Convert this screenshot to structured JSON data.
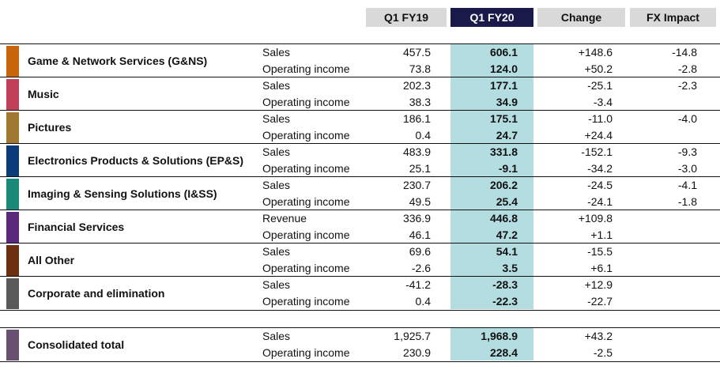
{
  "headers": {
    "q1fy19": "Q1 FY19",
    "q1fy20": "Q1 FY20",
    "change": "Change",
    "fx": "FX Impact"
  },
  "segments": [
    {
      "name": "Game & Network Services (G&NS)",
      "color": "#c8640a",
      "rows": [
        {
          "label": "Sales",
          "q1fy19": "457.5",
          "q1fy20": "606.1",
          "change": "+148.6",
          "fx": "-14.8"
        },
        {
          "label": "Operating income",
          "q1fy19": "73.8",
          "q1fy20": "124.0",
          "change": "+50.2",
          "fx": "-2.8"
        }
      ]
    },
    {
      "name": "Music",
      "color": "#c0405a",
      "rows": [
        {
          "label": "Sales",
          "q1fy19": "202.3",
          "q1fy20": "177.1",
          "change": "-25.1",
          "fx": "-2.3"
        },
        {
          "label": "Operating income",
          "q1fy19": "38.3",
          "q1fy20": "34.9",
          "change": "-3.4",
          "fx": ""
        }
      ]
    },
    {
      "name": "Pictures",
      "color": "#a07830",
      "rows": [
        {
          "label": "Sales",
          "q1fy19": "186.1",
          "q1fy20": "175.1",
          "change": "-11.0",
          "fx": "-4.0"
        },
        {
          "label": "Operating income",
          "q1fy19": "0.4",
          "q1fy20": "24.7",
          "change": "+24.4",
          "fx": ""
        }
      ]
    },
    {
      "name": "Electronics Products & Solutions (EP&S)",
      "color": "#0a3c78",
      "rows": [
        {
          "label": "Sales",
          "q1fy19": "483.9",
          "q1fy20": "331.8",
          "change": "-152.1",
          "fx": "-9.3"
        },
        {
          "label": "Operating income",
          "q1fy19": "25.1",
          "q1fy20": "-9.1",
          "change": "-34.2",
          "fx": "-3.0"
        }
      ]
    },
    {
      "name": "Imaging & Sensing Solutions (I&SS)",
      "color": "#1a8a78",
      "rows": [
        {
          "label": "Sales",
          "q1fy19": "230.7",
          "q1fy20": "206.2",
          "change": "-24.5",
          "fx": "-4.1"
        },
        {
          "label": "Operating income",
          "q1fy19": "49.5",
          "q1fy20": "25.4",
          "change": "-24.1",
          "fx": "-1.8"
        }
      ]
    },
    {
      "name": "Financial Services",
      "color": "#5a2a7a",
      "rows": [
        {
          "label": "Revenue",
          "q1fy19": "336.9",
          "q1fy20": "446.8",
          "change": "+109.8",
          "fx": ""
        },
        {
          "label": "Operating income",
          "q1fy19": "46.1",
          "q1fy20": "47.2",
          "change": "+1.1",
          "fx": ""
        }
      ]
    },
    {
      "name": "All Other",
      "color": "#6a3010",
      "rows": [
        {
          "label": "Sales",
          "q1fy19": "69.6",
          "q1fy20": "54.1",
          "change": "-15.5",
          "fx": ""
        },
        {
          "label": "Operating income",
          "q1fy19": "-2.6",
          "q1fy20": "3.5",
          "change": "+6.1",
          "fx": ""
        }
      ]
    },
    {
      "name": "Corporate and elimination",
      "color": "#5a5a5a",
      "rows": [
        {
          "label": "Sales",
          "q1fy19": "-41.2",
          "q1fy20": "-28.3",
          "change": "+12.9",
          "fx": ""
        },
        {
          "label": "Operating income",
          "q1fy19": "0.4",
          "q1fy20": "-22.3",
          "change": "-22.7",
          "fx": ""
        }
      ]
    }
  ],
  "total": {
    "name": "Consolidated total",
    "color": "#6a5070",
    "rows": [
      {
        "label": "Sales",
        "q1fy19": "1,925.7",
        "q1fy20": "1,968.9",
        "change": "+43.2",
        "fx": ""
      },
      {
        "label": "Operating income",
        "q1fy19": "230.9",
        "q1fy20": "228.4",
        "change": "-2.5",
        "fx": ""
      }
    ]
  }
}
